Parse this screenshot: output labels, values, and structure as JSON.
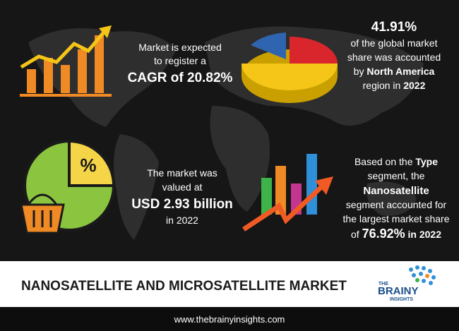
{
  "blocks": [
    {
      "lines": [
        [
          {
            "text": "Market is expected"
          }
        ],
        [
          {
            "text": "to register a"
          }
        ],
        [
          {
            "text": "CAGR of 20.82%",
            "bold": true
          }
        ]
      ]
    },
    {
      "lines": [
        [
          {
            "text": "41.91%",
            "bold": true
          }
        ],
        [
          {
            "text": "of the global market"
          }
        ],
        [
          {
            "text": "share was accounted"
          }
        ],
        [
          {
            "text": "by "
          },
          {
            "text": "North America",
            "bold": true
          }
        ],
        [
          {
            "text": "region in "
          },
          {
            "text": "2022",
            "bold": true
          }
        ]
      ]
    },
    {
      "lines": [
        [
          {
            "text": "The market was"
          }
        ],
        [
          {
            "text": "valued at"
          }
        ],
        [
          {
            "text": "USD 2.93 billion",
            "bold": true
          }
        ],
        [
          {
            "text": "in 2022"
          }
        ]
      ]
    },
    {
      "lines": [
        [
          {
            "text": "Based on the "
          },
          {
            "text": "Type",
            "bold": true
          }
        ],
        [
          {
            "text": "segment, the"
          }
        ],
        [
          {
            "text": "Nanosatellite",
            "bold": true
          }
        ],
        [
          {
            "text": "segment accounted for"
          }
        ],
        [
          {
            "text": "the largest market share"
          }
        ],
        [
          {
            "text": "of "
          },
          {
            "text": "76.92%",
            "bold": true
          },
          {
            "text": " in 2022",
            "bold": true
          }
        ]
      ]
    }
  ],
  "icon_symbol": "%",
  "title": "NANOSATELLITE AND MICROSATELLITE MARKET",
  "logo": {
    "top": "THE",
    "middle": "BRAINY",
    "bottom": "INSIGHTS"
  },
  "footer": "www.thebrainyinsights.com"
}
